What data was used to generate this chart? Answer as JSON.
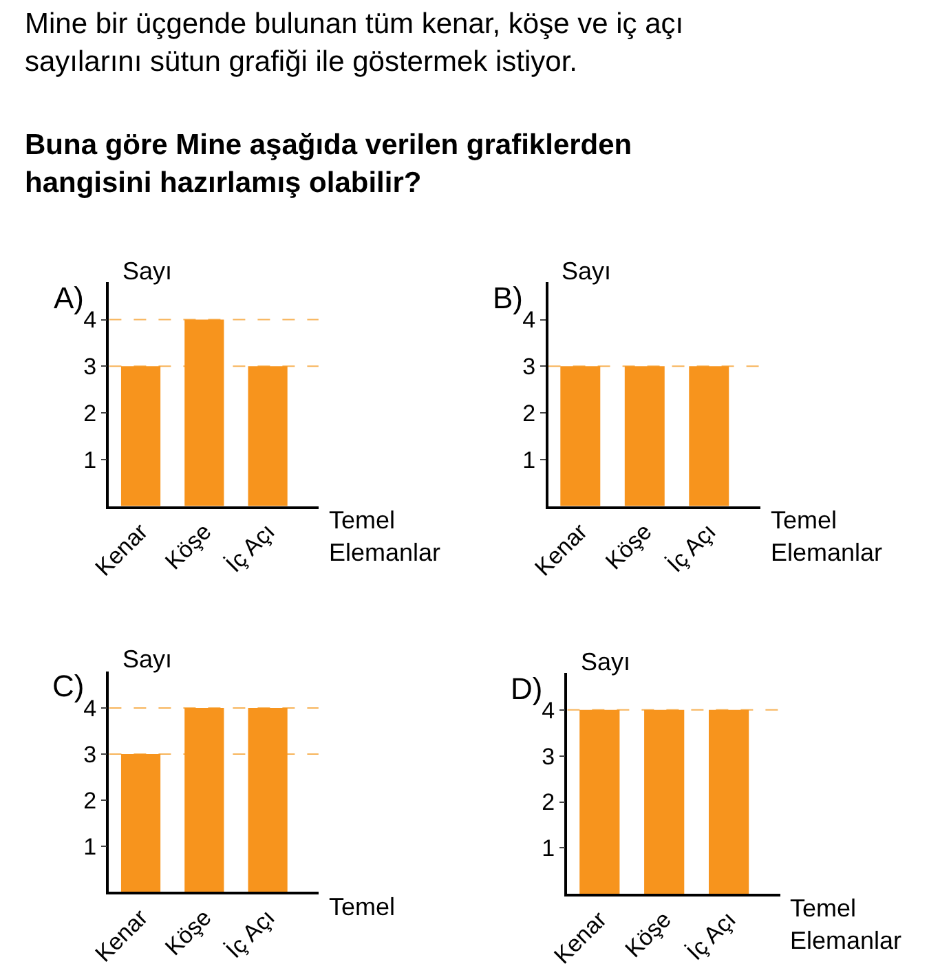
{
  "chart_data": [
    {
      "type": "bar",
      "title": "A)",
      "ylabel": "Sayı",
      "xlabel": "Temel Elemanlar",
      "categories": [
        "Kenar",
        "Köşe",
        "İç Açı"
      ],
      "values": [
        3,
        4,
        3
      ],
      "color": "#f7941d",
      "ylim": [
        0,
        4.8
      ],
      "yticks": [
        1,
        2,
        3,
        4
      ],
      "ref_lines": [
        {
          "axis": "y",
          "value": 4,
          "color": "#f7b45a",
          "line_style": "dashed"
        },
        {
          "axis": "y",
          "value": 3,
          "color": "#f7b45a",
          "line_style": "dashed"
        }
      ],
      "annotations": [
        "Mine bir üçgende bulunan tüm kenar, köşe ve iç açı sayılarını sütun grafiği ile göstermek istiyor.",
        "Buna göre Mine aşağıda verilen grafiklerden hangisini hazırlamış olabilir?"
      ]
    },
    {
      "type": "bar",
      "title": "B)",
      "ylabel": "Sayı",
      "xlabel": "Temel Elemanlar",
      "categories": [
        "Kenar",
        "Köşe",
        "İç Açı"
      ],
      "values": [
        3,
        3,
        3
      ],
      "color": "#f7941d",
      "ylim": [
        0,
        4.8
      ],
      "yticks": [
        1,
        2,
        3,
        4
      ],
      "ref_lines": [
        {
          "axis": "y",
          "value": 3,
          "color": "#f7b45a",
          "line_style": "dashed"
        }
      ]
    },
    {
      "type": "bar",
      "title": "C)",
      "ylabel": "Sayı",
      "xlabel": "Temel",
      "categories": [
        "Kenar",
        "Köşe",
        "İç Açı"
      ],
      "values": [
        3,
        4,
        4
      ],
      "color": "#f7941d",
      "ylim": [
        0,
        4.8
      ],
      "yticks": [
        1,
        2,
        3,
        4
      ],
      "ref_lines": [
        {
          "axis": "y",
          "value": 4,
          "color": "#f7b45a",
          "line_style": "dashed"
        },
        {
          "axis": "y",
          "value": 3,
          "color": "#f7b45a",
          "line_style": "dashed"
        }
      ]
    },
    {
      "type": "bar",
      "title": "D)",
      "ylabel": "Sayı",
      "xlabel": "Temel Elemanlar",
      "categories": [
        "Kenar",
        "Köşe",
        "İç Açı"
      ],
      "values": [
        4,
        4,
        4
      ],
      "color": "#f7941d",
      "ylim": [
        0,
        4.8
      ],
      "yticks": [
        1,
        2,
        3,
        4
      ],
      "ref_lines": [
        {
          "axis": "y",
          "value": 4,
          "color": "#f7b45a",
          "line_style": "dashed"
        }
      ]
    }
  ]
}
